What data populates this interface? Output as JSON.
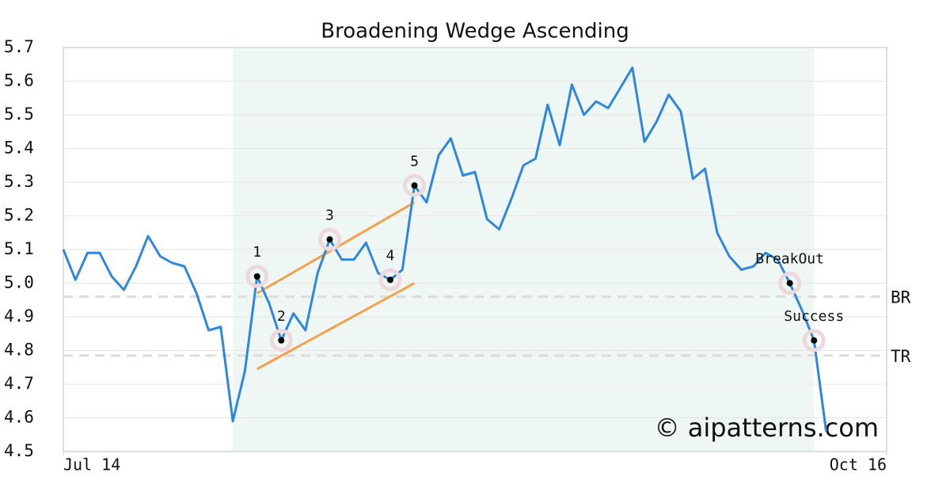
{
  "chart_data": {
    "type": "line",
    "title": "Broadening Wedge Ascending",
    "xlim": [
      0,
      68
    ],
    "xticks": [
      {
        "value": 0,
        "label": "Jul 14"
      },
      {
        "value": 68,
        "label": "Oct 16"
      }
    ],
    "ylim": [
      4.5,
      5.7
    ],
    "yticks": [
      4.5,
      4.6,
      4.7,
      4.8,
      4.9,
      {
        "value": 5,
        "label": "5.0"
      },
      5.1,
      5.2,
      5.3,
      5.4,
      5.5,
      5.6,
      5.7
    ],
    "grid": true,
    "series": [
      {
        "color": "#2e86de",
        "x": [
          0,
          1,
          2,
          3,
          4,
          5,
          6,
          7,
          8,
          9,
          10,
          11,
          12,
          13,
          14,
          15,
          16,
          17,
          18,
          19,
          20,
          21,
          22,
          23,
          24,
          25,
          26,
          27,
          28,
          29,
          30,
          31,
          32,
          33,
          34,
          35,
          36,
          37,
          38,
          39,
          40,
          41,
          42,
          43,
          44,
          45,
          46,
          47,
          48,
          49,
          50,
          51,
          52,
          53,
          54,
          55,
          56,
          57,
          58,
          59,
          60,
          61,
          62,
          63
        ],
        "values": [
          5.1,
          5.01,
          5.09,
          5.09,
          5.02,
          4.98,
          5.05,
          5.14,
          5.08,
          5.06,
          5.05,
          4.97,
          4.86,
          4.87,
          4.59,
          4.74,
          5.02,
          4.94,
          4.83,
          4.91,
          4.86,
          5.03,
          5.13,
          5.07,
          5.07,
          5.12,
          5.03,
          5.01,
          5.04,
          5.29,
          5.24,
          5.38,
          5.43,
          5.32,
          5.33,
          5.19,
          5.16,
          5.25,
          5.35,
          5.37,
          5.53,
          5.41,
          5.59,
          5.5,
          5.54,
          5.52,
          5.58,
          5.64,
          5.42,
          5.48,
          5.56,
          5.51,
          5.31,
          5.34,
          5.15,
          5.08,
          5.04,
          5.05,
          5.09,
          5.07,
          5.0,
          4.92,
          4.83,
          4.56
        ]
      }
    ],
    "shaded_range": [
      14,
      62
    ],
    "shade_color": "#eef7f3",
    "levels": [
      {
        "label": "BR",
        "value": 4.96
      },
      {
        "label": "TR",
        "value": 4.785
      }
    ],
    "trendline_color": "#f5a04a",
    "trendlines": [
      {
        "x": [
          16,
          29
        ],
        "y": [
          4.97,
          5.24
        ]
      },
      {
        "x": [
          16,
          29
        ],
        "y": [
          4.745,
          5.0
        ]
      }
    ],
    "points": [
      {
        "label": "1",
        "x": 16,
        "y": 5.02
      },
      {
        "label": "2",
        "x": 18,
        "y": 4.83
      },
      {
        "label": "3",
        "x": 22,
        "y": 5.13
      },
      {
        "label": "4",
        "x": 27,
        "y": 5.01
      },
      {
        "label": "5",
        "x": 29,
        "y": 5.29
      },
      {
        "label": "BreakOut",
        "x": 60,
        "y": 5.0
      },
      {
        "label": "Success",
        "x": 62,
        "y": 4.83
      }
    ],
    "watermark": "© aipatterns.com"
  }
}
